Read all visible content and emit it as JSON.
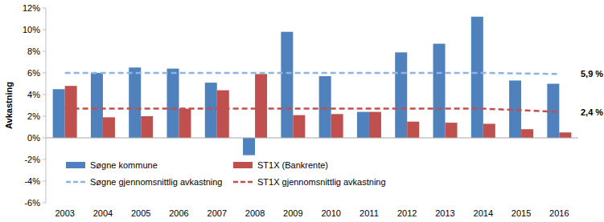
{
  "chart_data": {
    "type": "bar",
    "y_label": "Avkastning",
    "categories": [
      "2003",
      "2004",
      "2005",
      "2006",
      "2007",
      "2008",
      "2009",
      "2010",
      "2011",
      "2012",
      "2013",
      "2014",
      "2015",
      "2016"
    ],
    "series": [
      {
        "name": "Søgne kommune",
        "type": "bar",
        "color": "#4f81bd",
        "values": [
          4.5,
          6.0,
          6.5,
          6.4,
          5.1,
          -1.6,
          9.8,
          5.7,
          2.4,
          7.9,
          8.7,
          11.2,
          5.3,
          5.0
        ]
      },
      {
        "name": "ST1X (Bankrente)",
        "type": "bar",
        "color": "#c0504d",
        "values": [
          4.8,
          1.9,
          2.0,
          2.7,
          4.4,
          5.9,
          2.1,
          2.2,
          2.4,
          1.5,
          1.4,
          1.3,
          0.8,
          0.5
        ]
      },
      {
        "name": "Søgne gjennomsnittlig avkastning",
        "type": "line",
        "line_style": "dashed",
        "color": "#8eb4e3",
        "values": [
          6.0,
          6.0,
          6.0,
          6.0,
          6.0,
          6.0,
          6.0,
          6.0,
          6.0,
          6.0,
          6.0,
          6.0,
          5.95,
          5.9
        ],
        "value_labels": [
          null,
          null,
          null,
          null,
          null,
          null,
          null,
          null,
          null,
          null,
          null,
          null,
          null,
          "5,9 %"
        ]
      },
      {
        "name": "ST1X gjennomsnittlig avkastning",
        "type": "line",
        "line_style": "dashed",
        "color": "#c0504d",
        "values": [
          2.7,
          2.7,
          2.7,
          2.7,
          2.7,
          2.7,
          2.7,
          2.7,
          2.7,
          2.7,
          2.7,
          2.7,
          2.55,
          2.4
        ],
        "value_labels": [
          null,
          null,
          null,
          null,
          null,
          null,
          null,
          null,
          null,
          null,
          null,
          null,
          null,
          "2,4 %"
        ]
      }
    ],
    "ylim": [
      -6,
      12
    ],
    "yticks": [
      {
        "value": -6,
        "label": "-6%"
      },
      {
        "value": -4,
        "label": "-4%"
      },
      {
        "value": -2,
        "label": "-2%"
      },
      {
        "value": 0,
        "label": "0%"
      },
      {
        "value": 2,
        "label": "2%"
      },
      {
        "value": 4,
        "label": "4%"
      },
      {
        "value": 6,
        "label": "6%"
      },
      {
        "value": 8,
        "label": "8%"
      },
      {
        "value": 10,
        "label": "10%"
      },
      {
        "value": 12,
        "label": "12%"
      }
    ],
    "grid": false,
    "legend": "lower left"
  }
}
